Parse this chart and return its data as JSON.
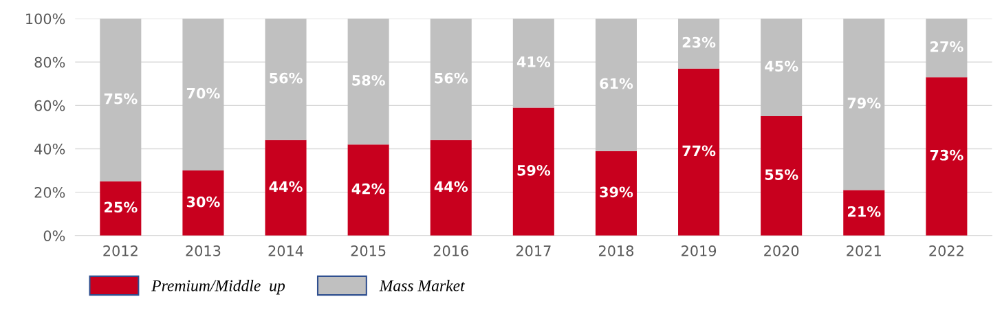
{
  "chart_data": {
    "type": "bar",
    "stacked": true,
    "categories": [
      "2012",
      "2013",
      "2014",
      "2015",
      "2016",
      "2017",
      "2018",
      "2019",
      "2020",
      "2021",
      "2022"
    ],
    "series": [
      {
        "name": "Premium/Middle  up",
        "color": "#c8001e",
        "values": [
          25,
          30,
          44,
          42,
          44,
          59,
          39,
          77,
          55,
          21,
          73
        ],
        "value_labels": [
          "25%",
          "30%",
          "44%",
          "42%",
          "44%",
          "59%",
          "39%",
          "77%",
          "55%",
          "21%",
          "73%"
        ]
      },
      {
        "name": "Mass Market",
        "color": "#c0c0c0",
        "values": [
          75,
          70,
          56,
          58,
          56,
          41,
          61,
          23,
          45,
          79,
          27
        ],
        "value_labels": [
          "75%",
          "70%",
          "56%",
          "58%",
          "56%",
          "41%",
          "61%",
          "23%",
          "45%",
          "79%",
          "27%"
        ]
      }
    ],
    "ylim": [
      0,
      100
    ],
    "yticks": [
      {
        "value": 0,
        "label": "0%"
      },
      {
        "value": 20,
        "label": "20%"
      },
      {
        "value": 40,
        "label": "40%"
      },
      {
        "value": 60,
        "label": "60%"
      },
      {
        "value": 80,
        "label": "80%"
      },
      {
        "value": 100,
        "label": "100%"
      }
    ],
    "grid": "y",
    "legend": "bottom left"
  }
}
